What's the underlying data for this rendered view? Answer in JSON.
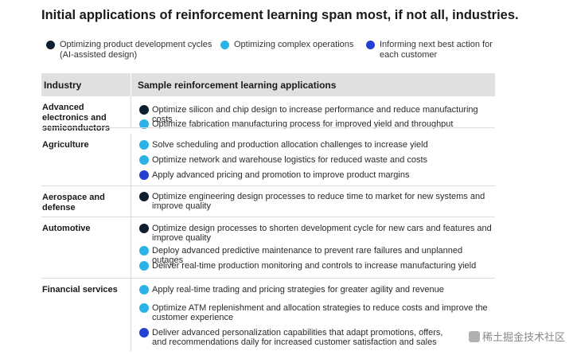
{
  "title": "Initial applications of reinforcement learning span most, if not all, industries.",
  "colors": {
    "dark": "#0e1e2e",
    "cyan": "#2bb3e8",
    "blue": "#2340d0",
    "header_bg": "#e0e0e0"
  },
  "legend": [
    {
      "label": "Optimizing product development cycles (AI-assisted design)",
      "color": "#0e1e2e"
    },
    {
      "label": "Optimizing complex operations",
      "color": "#2bb3e8"
    },
    {
      "label": "Informing next best action for each customer",
      "color": "#2340d0"
    }
  ],
  "table": {
    "headers": [
      "Industry",
      "Sample reinforcement learning applications"
    ],
    "rows": [
      {
        "industry": "Advanced electronics and semiconductors",
        "apps": [
          {
            "type": "dark",
            "text": "Optimize silicon and chip design to increase performance and reduce manufacturing costs"
          },
          {
            "type": "cyan",
            "text": "Optimize fabrication manufacturing process for improved yield and throughput"
          }
        ]
      },
      {
        "industry": "Agriculture",
        "apps": [
          {
            "type": "cyan",
            "text": "Solve scheduling and production allocation challenges to increase yield"
          },
          {
            "type": "cyan",
            "text": "Optimize network and warehouse logistics for reduced waste and costs"
          },
          {
            "type": "blue",
            "text": "Apply advanced pricing and promotion to improve product margins"
          }
        ]
      },
      {
        "industry": "Aerospace and defense",
        "apps": [
          {
            "type": "dark",
            "text": "Optimize engineering design processes to reduce time to market for new systems and improve quality"
          }
        ]
      },
      {
        "industry": "Automotive",
        "apps": [
          {
            "type": "dark",
            "text": "Optimize design processes to shorten development cycle for new cars and features and improve quality"
          },
          {
            "type": "cyan",
            "text": "Deploy advanced predictive maintenance to prevent rare failures and unplanned outages"
          },
          {
            "type": "cyan",
            "text": "Deliver real-time production monitoring and controls to increase manufacturing yield"
          }
        ]
      },
      {
        "industry": "Financial services",
        "apps": [
          {
            "type": "cyan",
            "text": "Apply real-time trading and pricing strategies for greater agility and revenue"
          },
          {
            "type": "cyan",
            "text": "Optimize ATM replenishment and allocation strategies to reduce costs and improve the customer experience"
          },
          {
            "type": "blue",
            "text": "Deliver advanced personalization capabilities that adapt promotions, offers, and recommendations daily for increased customer satisfaction and sales"
          }
        ]
      }
    ]
  },
  "watermark": "稀土掘金技术社区"
}
